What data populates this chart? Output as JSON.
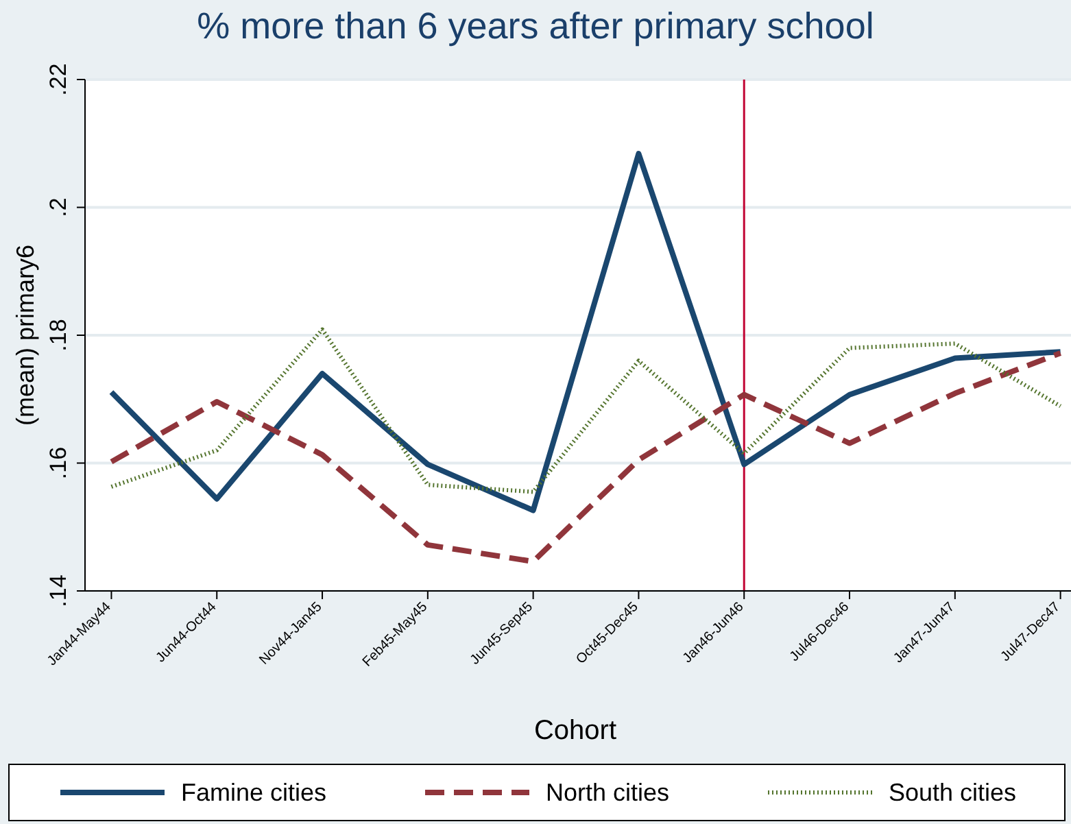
{
  "chart_data": {
    "type": "line",
    "title": "% more than 6 years after primary school",
    "xlabel": "Cohort",
    "ylabel": "(mean) primary6",
    "categories": [
      "Jan44-May44",
      "Jun44-Oct44",
      "Nov44-Jan45",
      "Feb45-May45",
      "Jun45-Sep45",
      "Oct45-Dec45",
      "Jan46-Jun46",
      "Jul46-Dec46",
      "Jan47-Jun47",
      "Jul47-Dec47"
    ],
    "series": [
      {
        "name": "Famine cities",
        "color": "#1a476f",
        "line_style": "solid",
        "values": [
          0.1711,
          0.1544,
          0.174,
          0.1598,
          0.1526,
          0.2084,
          0.1598,
          0.1707,
          0.1764,
          0.1774
        ]
      },
      {
        "name": "North cities",
        "color": "#90353b",
        "line_style": "dashed",
        "values": [
          0.1602,
          0.1696,
          0.1613,
          0.1472,
          0.1446,
          0.1605,
          0.1707,
          0.1631,
          0.1709,
          0.1772
        ]
      },
      {
        "name": "South cities",
        "color": "#55752f",
        "line_style": "dotted",
        "values": [
          0.1563,
          0.162,
          0.1809,
          0.1566,
          0.1555,
          0.176,
          0.1615,
          0.178,
          0.1787,
          0.1689
        ]
      }
    ],
    "ylim": [
      0.14,
      0.22
    ],
    "yticks": [
      {
        "value": 0.14,
        "label": ".14"
      },
      {
        "value": 0.16,
        "label": ".16"
      },
      {
        "value": 0.18,
        "label": ".18"
      },
      {
        "value": 0.2,
        "label": ".2"
      },
      {
        "value": 0.22,
        "label": ".22"
      }
    ],
    "grid": "y",
    "legend": "bottom",
    "marker": "none",
    "ref_lines": [
      {
        "axis": "x",
        "value": "Jan46-Jun46",
        "color": "#c10534"
      }
    ]
  }
}
